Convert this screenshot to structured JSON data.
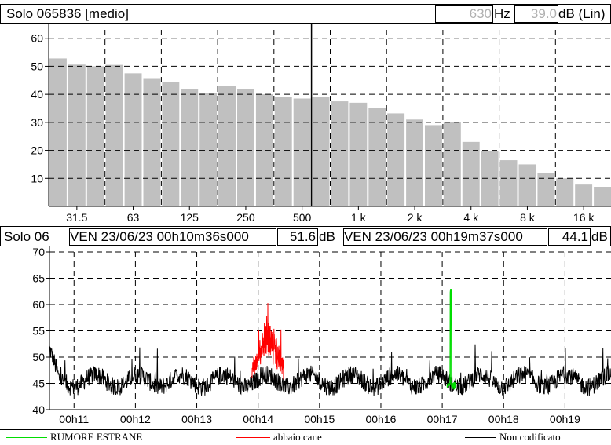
{
  "spectrum": {
    "title": "Solo 065836 [medio]",
    "freq_value": "630",
    "freq_unit": "Hz",
    "level_value": "39.0",
    "level_unit": "dB (Lin)"
  },
  "timeline": {
    "title": "Solo 06",
    "cursor1": "VEN 23/06/23 00h10m36s000",
    "cursor1_level": "51.6",
    "cursor1_unit": "dB",
    "cursor2": "VEN 23/06/23 00h19m37s000",
    "cursor2_level": "44.1",
    "cursor2_unit": "dB"
  },
  "legend": [
    {
      "label": "RUMORE ESTRANE",
      "color": "#00dd00"
    },
    {
      "label": "abbaio cane",
      "color": "#ff0000"
    },
    {
      "label": "Non codificato",
      "color": "#000000"
    }
  ],
  "chart_data": [
    {
      "type": "bar",
      "ylim": [
        0,
        63
      ],
      "yticks": [
        10,
        20,
        30,
        40,
        50,
        60
      ],
      "x_tick_labels": [
        "31.5",
        "63",
        "125",
        "250",
        "500",
        "1 k",
        "2 k",
        "4 k",
        "8 k",
        "16 k"
      ],
      "categories": [
        "25",
        "31.5",
        "40",
        "50",
        "63",
        "80",
        "100",
        "125",
        "160",
        "200",
        "250",
        "315",
        "400",
        "500",
        "630",
        "800",
        "1 k",
        "1.25 k",
        "1.6 k",
        "2 k",
        "2.5 k",
        "3.15 k",
        "4 k",
        "5 k",
        "6.3 k",
        "8 k",
        "10 k",
        "12.5 k",
        "16 k",
        "20 k"
      ],
      "values": [
        52.8,
        50.6,
        50.0,
        50.5,
        47.5,
        45.5,
        44.5,
        42.0,
        40.5,
        43.0,
        41.8,
        40.0,
        39.0,
        38.5,
        39.0,
        37.5,
        37.0,
        35.2,
        33.2,
        31.0,
        29.0,
        30.0,
        23.0,
        19.8,
        16.5,
        15.0,
        12.0,
        10.0,
        7.8,
        7.0
      ],
      "cursor_category": "630",
      "bar_color": "#c0c0c0"
    },
    {
      "type": "line",
      "ylim": [
        40,
        70
      ],
      "yticks": [
        40,
        45,
        50,
        55,
        60,
        65,
        70
      ],
      "x_tick_labels": [
        "00h11",
        "00h12",
        "00h13",
        "00h14",
        "00h15",
        "00h16",
        "00h17",
        "00h18",
        "00h19"
      ],
      "x_range_minutes": [
        10.6,
        19.75
      ],
      "series": [
        {
          "name": "Non codificato",
          "color": "#000000",
          "segment": [
            10.6,
            19.75
          ],
          "baseline": 45.5
        },
        {
          "name": "abbaio cane",
          "color": "#ff0000",
          "segment": [
            13.9,
            14.42
          ],
          "baseline": 47.5,
          "peak": 57
        },
        {
          "name": "RUMORE ESTRANE",
          "color": "#00dd00",
          "segment": [
            17.08,
            17.22
          ],
          "baseline": 44.5,
          "peak": 63
        }
      ]
    }
  ]
}
